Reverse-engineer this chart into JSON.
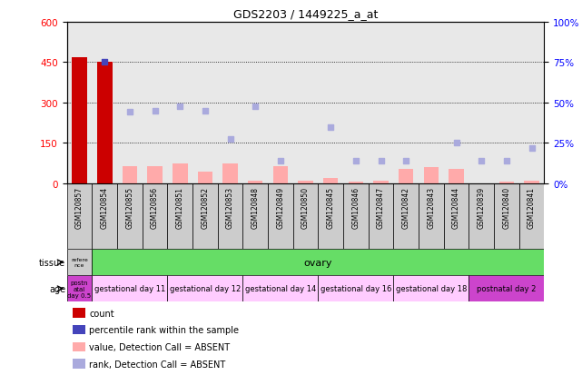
{
  "title": "GDS2203 / 1449225_a_at",
  "samples": [
    "GSM120857",
    "GSM120854",
    "GSM120855",
    "GSM120856",
    "GSM120851",
    "GSM120852",
    "GSM120853",
    "GSM120848",
    "GSM120849",
    "GSM120850",
    "GSM120845",
    "GSM120846",
    "GSM120847",
    "GSM120842",
    "GSM120843",
    "GSM120844",
    "GSM120839",
    "GSM120840",
    "GSM120841"
  ],
  "count_values": [
    468,
    451,
    0,
    0,
    0,
    0,
    0,
    0,
    0,
    0,
    0,
    0,
    0,
    0,
    0,
    0,
    0,
    0,
    0
  ],
  "rank_values": [
    null,
    451,
    null,
    null,
    null,
    null,
    null,
    null,
    null,
    null,
    null,
    null,
    null,
    null,
    null,
    null,
    null,
    null,
    null
  ],
  "absent_value": [
    null,
    null,
    65,
    65,
    75,
    45,
    75,
    10,
    65,
    10,
    20,
    5,
    10,
    55,
    60,
    55,
    0,
    5,
    10
  ],
  "absent_rank": [
    null,
    null,
    265,
    270,
    285,
    270,
    165,
    285,
    85,
    null,
    210,
    85,
    85,
    85,
    null,
    150,
    85,
    85,
    130
  ],
  "ylim_left": [
    0,
    600
  ],
  "ylim_right": [
    0,
    100
  ],
  "yticks_left": [
    0,
    150,
    300,
    450,
    600
  ],
  "yticks_right": [
    0,
    25,
    50,
    75,
    100
  ],
  "tissue_ref_color": "#cccccc",
  "tissue_ref_label": "refere\nnce",
  "tissue_ovary_color": "#66dd66",
  "tissue_ovary_label": "ovary",
  "age_row": [
    {
      "start": 0,
      "end": 1,
      "label": "postn\natal\nday 0.5",
      "color": "#cc44cc"
    },
    {
      "start": 1,
      "end": 4,
      "label": "gestational day 11",
      "color": "#ffccff"
    },
    {
      "start": 4,
      "end": 7,
      "label": "gestational day 12",
      "color": "#ffccff"
    },
    {
      "start": 7,
      "end": 10,
      "label": "gestational day 14",
      "color": "#ffccff"
    },
    {
      "start": 10,
      "end": 13,
      "label": "gestational day 16",
      "color": "#ffccff"
    },
    {
      "start": 13,
      "end": 16,
      "label": "gestational day 18",
      "color": "#ffccff"
    },
    {
      "start": 16,
      "end": 19,
      "label": "postnatal day 2",
      "color": "#cc44cc"
    }
  ],
  "bar_color_red": "#cc0000",
  "bar_color_pink": "#ffaaaa",
  "scatter_color_blue": "#4444bb",
  "scatter_color_lightblue": "#aaaadd",
  "bg_color": "#ffffff",
  "axis_bg": "#e8e8e8",
  "sample_bg": "#cccccc"
}
